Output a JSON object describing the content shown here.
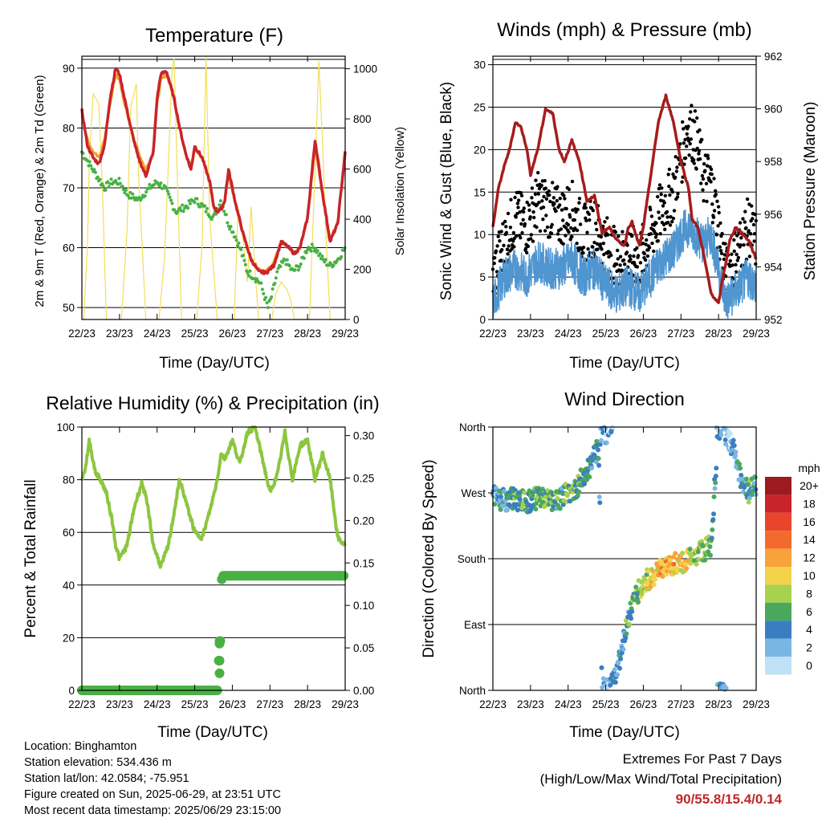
{
  "footer": {
    "location": "Location: Binghamton",
    "elevation": "Station elevation: 534.436 m",
    "latlon": "Station lat/lon: 42.0584; -75.951",
    "created": "Figure created on Sun, 2025-06-29, at 23:51 UTC",
    "recent": "Most recent data timestamp: 2025/06/29 23:15:00",
    "extremes_title": "Extremes For Past 7 Days",
    "extremes_sub": "(High/Low/Max Wind/Total Precipitation)",
    "extremes_values": "90/55.8/15.4/0.14"
  },
  "chart_data": [
    {
      "type": "line",
      "title": "Temperature (F)",
      "xlabel": "Time (Day/UTC)",
      "ylabel": "2m & 9m T (Red, Orange) & 2m Td (Green)",
      "y2label": "Solar Insolation (Yellow)",
      "xticks": [
        "22/23",
        "23/23",
        "24/23",
        "25/23",
        "26/23",
        "27/23",
        "28/23",
        "29/23"
      ],
      "xlim": [
        0,
        7
      ],
      "ylim": [
        48,
        92
      ],
      "yticks": [
        50,
        60,
        70,
        80,
        90
      ],
      "y2lim": [
        0,
        1050
      ],
      "y2ticks": [
        0,
        200,
        400,
        600,
        800,
        1000
      ],
      "colors": {
        "t2m": "#c9242b",
        "t9m": "#f5a02c",
        "td": "#48b144",
        "solar": "#f2de5a"
      },
      "series": [
        {
          "key": "t2m",
          "x": [
            0,
            0.15,
            0.3,
            0.45,
            0.6,
            0.75,
            0.9,
            1.0,
            1.1,
            1.3,
            1.5,
            1.7,
            1.9,
            2.0,
            2.1,
            2.25,
            2.45,
            2.6,
            2.75,
            2.9,
            3.0,
            3.2,
            3.4,
            3.5,
            3.6,
            3.7,
            3.75,
            3.8,
            3.9,
            4.1,
            4.3,
            4.5,
            4.7,
            4.9,
            5.1,
            5.3,
            5.5,
            5.65,
            5.8,
            6.0,
            6.2,
            6.4,
            6.6,
            6.8,
            6.9,
            7.0
          ],
          "values": [
            83,
            77,
            75,
            74,
            77,
            85,
            90,
            89,
            86,
            80,
            75,
            72,
            76,
            85,
            89,
            89.5,
            85,
            80,
            76,
            73,
            77,
            75,
            71,
            67,
            66,
            66.5,
            67,
            68,
            73,
            67,
            62,
            58,
            56,
            55.8,
            57,
            61,
            60,
            59,
            60,
            65,
            78,
            69,
            61,
            64,
            70,
            76
          ]
        },
        {
          "key": "t9m",
          "x": [
            0,
            0.15,
            0.3,
            0.45,
            0.6,
            0.75,
            0.9,
            1.0,
            1.1,
            1.3,
            1.5,
            1.7,
            1.9,
            2.0,
            2.1,
            2.25,
            2.45,
            2.6,
            2.75,
            2.9,
            3.0,
            3.2,
            3.4,
            3.5,
            3.6,
            3.7,
            3.75,
            3.8,
            3.9,
            4.1,
            4.3,
            4.5,
            4.7,
            4.9,
            5.1,
            5.3,
            5.5,
            5.65,
            5.8,
            6.0,
            6.2,
            6.4,
            6.6,
            6.8,
            6.9,
            7.0
          ],
          "values": [
            82,
            78,
            76,
            75,
            78,
            84,
            89,
            88,
            85,
            80,
            76,
            73,
            76,
            84,
            88,
            89,
            85,
            80,
            76,
            73.5,
            76.5,
            75,
            71,
            67,
            66,
            66.5,
            67,
            68,
            72,
            67,
            62,
            58,
            56.5,
            56,
            57.5,
            61,
            60,
            59,
            60,
            65,
            77,
            69,
            61.5,
            64,
            70,
            75.5
          ]
        },
        {
          "key": "td",
          "x": [
            0,
            0.2,
            0.4,
            0.6,
            0.8,
            1.0,
            1.2,
            1.5,
            1.8,
            2.0,
            2.2,
            2.5,
            2.8,
            3.0,
            3.2,
            3.5,
            3.7,
            3.9,
            4.0,
            4.2,
            4.4,
            4.6,
            4.75,
            4.85,
            4.95,
            5.05,
            5.2,
            5.4,
            5.6,
            5.8,
            6.0,
            6.2,
            6.4,
            6.6,
            6.8,
            7.0
          ],
          "values": [
            76,
            74,
            72,
            70,
            71,
            71,
            69,
            68,
            70,
            71,
            70,
            66,
            67,
            68,
            67,
            65,
            68,
            64,
            63,
            60,
            56,
            55,
            54,
            52,
            50,
            52,
            56,
            58,
            56,
            57,
            60,
            60,
            58,
            57,
            58,
            60
          ]
        },
        {
          "key": "solar",
          "x": [
            0,
            0.05,
            0.15,
            0.2,
            0.3,
            0.45,
            0.55,
            0.65,
            1.0,
            1.05,
            1.2,
            1.3,
            1.45,
            1.5,
            1.6,
            1.7,
            2.0,
            2.05,
            2.2,
            2.4,
            2.45,
            2.55,
            2.65,
            3.0,
            3.05,
            3.2,
            3.3,
            3.4,
            3.5,
            3.6,
            3.7,
            4.0,
            4.05,
            4.15,
            4.3,
            4.4,
            4.5,
            4.6,
            4.7,
            5.0,
            5.05,
            5.15,
            5.3,
            5.45,
            5.55,
            5.65,
            6.0,
            6.05,
            6.2,
            6.3,
            6.4,
            6.5,
            6.6,
            6.7,
            7.0
          ],
          "values": [
            0,
            0,
            300,
            650,
            900,
            860,
            500,
            0,
            0,
            0,
            350,
            850,
            940,
            600,
            300,
            0,
            0,
            0,
            250,
            1000,
            1040,
            500,
            0,
            0,
            0,
            300,
            1050,
            400,
            200,
            0,
            0,
            0,
            0,
            450,
            300,
            150,
            450,
            200,
            0,
            0,
            0,
            100,
            150,
            120,
            80,
            0,
            0,
            0,
            600,
            1030,
            700,
            300,
            0,
            0,
            0
          ]
        }
      ]
    },
    {
      "type": "scatter",
      "title": "Winds (mph) & Pressure (mb)",
      "xlabel": "Time (Day/UTC)",
      "ylabel": "Sonic Wind & Gust (Blue, Black)",
      "y2label": "Station Pressure (Maroon)",
      "xticks": [
        "22/23",
        "23/23",
        "24/23",
        "25/23",
        "26/23",
        "27/23",
        "28/23",
        "29/23"
      ],
      "xlim": [
        0,
        7
      ],
      "ylim": [
        0,
        31
      ],
      "yticks": [
        0,
        5,
        10,
        15,
        20,
        25,
        30
      ],
      "y2lim": [
        952,
        962
      ],
      "y2ticks": [
        952,
        954,
        956,
        958,
        960,
        962
      ],
      "colors": {
        "wind": "#4f95d0",
        "gust": "#000000",
        "pressure": "#a61c1c"
      },
      "series": [
        {
          "key": "wind",
          "x": [
            0,
            0.3,
            0.6,
            0.9,
            1.2,
            1.5,
            1.8,
            2.1,
            2.4,
            2.7,
            3.0,
            3.3,
            3.6,
            3.9,
            4.2,
            4.5,
            4.8,
            5.0,
            5.2,
            5.4,
            5.6,
            5.8,
            6.0,
            6.2,
            6.4,
            6.6,
            6.8,
            7.0
          ],
          "values": [
            2,
            5,
            6,
            5,
            7,
            6,
            6,
            7,
            5,
            6,
            4,
            3,
            4,
            3,
            5,
            7,
            8,
            10,
            11,
            10,
            9,
            10,
            6,
            2,
            3,
            4,
            5,
            4
          ]
        },
        {
          "key": "gust",
          "x": [
            0,
            0.3,
            0.6,
            0.9,
            1.2,
            1.5,
            1.8,
            2.1,
            2.4,
            2.7,
            3.0,
            3.3,
            3.6,
            3.9,
            4.2,
            4.5,
            4.8,
            5.0,
            5.2,
            5.4,
            5.6,
            5.8,
            6.0,
            6.2,
            6.4,
            6.6,
            6.8,
            7.0
          ],
          "values": [
            5,
            9,
            12,
            11,
            14,
            13,
            12,
            13,
            10,
            11,
            9,
            7,
            8,
            7,
            10,
            13,
            15,
            19,
            23,
            21,
            17,
            16,
            11,
            5,
            7,
            9,
            11,
            9
          ]
        },
        {
          "key": "pressure",
          "x": [
            0,
            0.15,
            0.3,
            0.45,
            0.6,
            0.75,
            0.9,
            1.0,
            1.2,
            1.4,
            1.6,
            1.75,
            1.9,
            2.1,
            2.3,
            2.5,
            2.7,
            2.9,
            3.1,
            3.3,
            3.5,
            3.6,
            3.7,
            3.8,
            3.9,
            4.0,
            4.2,
            4.4,
            4.6,
            4.8,
            5.0,
            5.2,
            5.3,
            5.45,
            5.6,
            5.8,
            6.0,
            6.1,
            6.2,
            6.3,
            6.45,
            6.6,
            6.8,
            7.0
          ],
          "values": [
            955.5,
            957,
            957.8,
            958.5,
            959.5,
            959.3,
            958.5,
            957.5,
            958.5,
            960,
            959.8,
            958.5,
            958,
            958.8,
            958,
            956.5,
            956.7,
            955.3,
            955.5,
            955,
            954.8,
            955.5,
            955.7,
            955.2,
            954.8,
            955.5,
            957.5,
            959.5,
            960.5,
            959.5,
            958,
            957,
            955.8,
            955.5,
            954.5,
            953,
            952.6,
            953.5,
            954.2,
            955,
            955.5,
            955.3,
            955,
            954.3
          ]
        }
      ]
    },
    {
      "type": "scatter",
      "title": "Relative Humidity (%) & Precipitation (in)",
      "xlabel": "Time (Day/UTC)",
      "ylabel": "Percent & Total Rainfall",
      "xticks": [
        "22/23",
        "23/23",
        "24/23",
        "25/23",
        "26/23",
        "27/23",
        "28/23",
        "29/23"
      ],
      "xlim": [
        0,
        7
      ],
      "ylim": [
        0,
        100
      ],
      "yticks": [
        0,
        20,
        40,
        60,
        80,
        100
      ],
      "y2lim": [
        0,
        0.31
      ],
      "y2ticks": [
        "0.00",
        "0.05",
        "0.10",
        "0.15",
        "0.20",
        "0.25",
        "0.30"
      ],
      "colors": {
        "rh": "#8cc63f",
        "precip": "#48b144"
      },
      "series": [
        {
          "key": "rh",
          "x": [
            0,
            0.1,
            0.2,
            0.35,
            0.5,
            0.65,
            0.8,
            0.9,
            1.0,
            1.2,
            1.4,
            1.6,
            1.75,
            1.9,
            2.1,
            2.3,
            2.6,
            2.8,
            3.0,
            3.2,
            3.4,
            3.6,
            3.7,
            3.8,
            4.0,
            4.2,
            4.4,
            4.6,
            4.8,
            5.0,
            5.2,
            5.4,
            5.6,
            5.8,
            6.0,
            6.2,
            6.4,
            6.6,
            6.8,
            7.0
          ],
          "values": [
            80,
            85,
            95,
            83,
            80,
            75,
            65,
            55,
            50,
            55,
            70,
            79,
            70,
            55,
            47,
            55,
            80,
            70,
            60,
            58,
            68,
            80,
            90,
            88,
            95,
            86,
            98,
            100,
            88,
            75,
            82,
            98,
            80,
            93,
            95,
            80,
            90,
            80,
            58,
            55
          ]
        },
        {
          "key": "precip",
          "x": [
            0,
            0.5,
            1.0,
            1.5,
            2.0,
            2.5,
            3.0,
            3.5,
            3.6,
            3.62,
            3.64,
            3.66,
            3.68,
            3.7,
            3.75,
            4.0,
            4.5,
            5.0,
            5.5,
            6.0,
            6.5,
            7.0
          ],
          "values": [
            0,
            0,
            0,
            0,
            0,
            0,
            0,
            0,
            0,
            0.02,
            0.035,
            0.055,
            0.058,
            0.128,
            0.135,
            0.135,
            0.135,
            0.135,
            0.135,
            0.135,
            0.135,
            0.135
          ]
        }
      ]
    },
    {
      "type": "scatter",
      "title": "Wind Direction",
      "xlabel": "Time (Day/UTC)",
      "ylabel": "Direction (Colored By Speed)",
      "xticks": [
        "22/23",
        "23/23",
        "24/23",
        "25/23",
        "26/23",
        "27/23",
        "28/23",
        "29/23"
      ],
      "xlim": [
        0,
        7
      ],
      "ylim": [
        0,
        360
      ],
      "ytick_labels": [
        "North",
        "East",
        "South",
        "West",
        "North"
      ],
      "yticks": [
        0,
        90,
        180,
        270,
        360
      ],
      "legend_title": "mph",
      "legend_labels": [
        "20+",
        "18",
        "16",
        "14",
        "12",
        "10",
        "8",
        "6",
        "4",
        "2",
        "0"
      ],
      "legend_colors": [
        "#9b1b1e",
        "#c9242b",
        "#e8452a",
        "#f26b2c",
        "#f8a23a",
        "#f3d34a",
        "#a8d14f",
        "#4aa85c",
        "#3a7ec2",
        "#7ab6e4",
        "#bfe2f6"
      ],
      "series": [
        {
          "key": "direction",
          "x": [
            0,
            0.3,
            0.6,
            0.9,
            1.2,
            1.5,
            1.8,
            2.0,
            2.2,
            2.5,
            2.8,
            3.0,
            3.2,
            3.4,
            3.6,
            3.8,
            4.0,
            4.2,
            4.5,
            4.8,
            5.0,
            5.2,
            5.4,
            5.6,
            5.8,
            6.0,
            6.2,
            6.4,
            6.6,
            6.8,
            7.0
          ],
          "values": [
            265,
            260,
            262,
            258,
            263,
            260,
            262,
            270,
            275,
            300,
            330,
            0,
            10,
            50,
            100,
            130,
            145,
            155,
            165,
            172,
            175,
            180,
            185,
            190,
            200,
            360,
            350,
            330,
            290,
            270,
            280
          ],
          "speeds": [
            3,
            4,
            5,
            6,
            7,
            6,
            5,
            7,
            6,
            5,
            4,
            2,
            3,
            4,
            5,
            6,
            8,
            10,
            12,
            11,
            10,
            9,
            8,
            7,
            6,
            3,
            2,
            3,
            4,
            5,
            4
          ]
        }
      ]
    }
  ]
}
